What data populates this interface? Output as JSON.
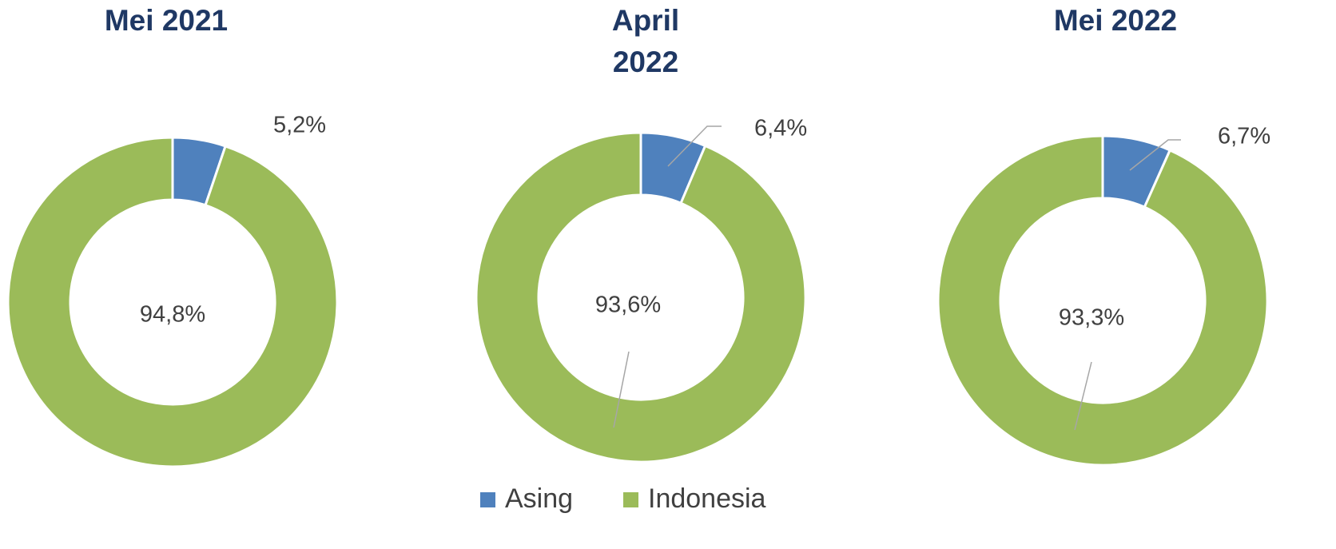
{
  "chart_data": [
    {
      "type": "donut",
      "title": "Mei 2021",
      "categories": [
        "Asing",
        "Indonesia"
      ],
      "values": [
        5.2,
        94.8
      ],
      "value_labels": [
        "5,2%",
        "94,8%"
      ],
      "colors": [
        "#4f81bd",
        "#9bbb59"
      ]
    },
    {
      "type": "donut",
      "title": "April 2022",
      "categories": [
        "Asing",
        "Indonesia"
      ],
      "values": [
        6.4,
        93.6
      ],
      "value_labels": [
        "6,4%",
        "93,6%"
      ],
      "colors": [
        "#4f81bd",
        "#9bbb59"
      ]
    },
    {
      "type": "donut",
      "title": "Mei 2022",
      "categories": [
        "Asing",
        "Indonesia"
      ],
      "values": [
        6.7,
        93.3
      ],
      "value_labels": [
        "6,7%",
        "93,3%"
      ],
      "colors": [
        "#4f81bd",
        "#9bbb59"
      ]
    }
  ]
}
